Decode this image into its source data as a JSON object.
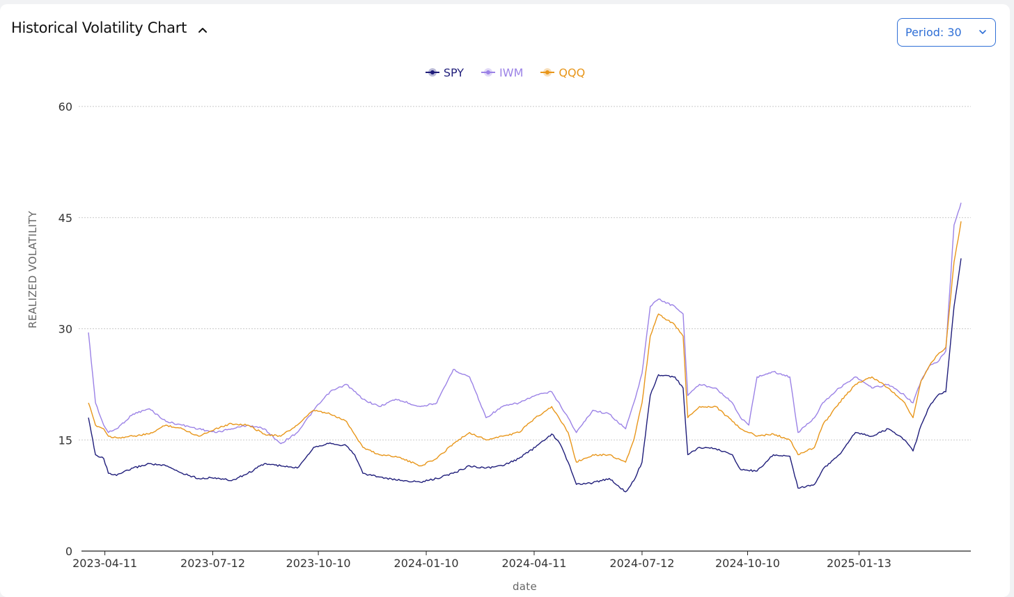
{
  "header": {
    "title": "Historical Volatility Chart",
    "collapse_icon": "chevron-up-icon",
    "period_label": "Period: 30",
    "period_icon": "chevron-down-icon"
  },
  "colors": {
    "SPY": "#1f1d7a",
    "IWM": "#9b82e6",
    "QQQ": "#e8961a",
    "accent": "#2f6fd6",
    "grid": "#c9c9c9"
  },
  "chart_data": {
    "type": "line",
    "title": "",
    "xlabel": "date",
    "ylabel": "REALIZED VOLATILITY",
    "ylim": [
      0,
      60
    ],
    "yticks": [
      0,
      15,
      30,
      45,
      60
    ],
    "xticks": [
      "2023-04-11",
      "2023-07-12",
      "2023-10-10",
      "2024-01-10",
      "2024-04-11",
      "2024-07-12",
      "2024-10-10",
      "2025-01-13"
    ],
    "xrange": [
      "2023-03-28",
      "2025-04-10"
    ],
    "grid": "horizontal dotted",
    "legend_position": "top-center",
    "series": [
      {
        "name": "SPY",
        "points": [
          [
            "2023-03-28",
            18
          ],
          [
            "2023-04-03",
            13
          ],
          [
            "2023-04-10",
            12.5
          ],
          [
            "2023-04-14",
            10.5
          ],
          [
            "2023-04-21",
            10.2
          ],
          [
            "2023-05-05",
            11.2
          ],
          [
            "2023-05-19",
            11.8
          ],
          [
            "2023-06-02",
            11.5
          ],
          [
            "2023-06-16",
            10.5
          ],
          [
            "2023-06-30",
            9.8
          ],
          [
            "2023-07-14",
            9.9
          ],
          [
            "2023-07-28",
            9.5
          ],
          [
            "2023-08-11",
            10.5
          ],
          [
            "2023-08-25",
            11.8
          ],
          [
            "2023-09-08",
            11.5
          ],
          [
            "2023-09-22",
            11.2
          ],
          [
            "2023-10-06",
            14
          ],
          [
            "2023-10-20",
            14.6
          ],
          [
            "2023-11-03",
            14.2
          ],
          [
            "2023-11-10",
            13
          ],
          [
            "2023-11-17",
            10.5
          ],
          [
            "2023-12-01",
            10
          ],
          [
            "2023-12-15",
            9.6
          ],
          [
            "2024-01-05",
            9.3
          ],
          [
            "2024-01-19",
            9.8
          ],
          [
            "2024-02-02",
            10.5
          ],
          [
            "2024-02-16",
            11.5
          ],
          [
            "2024-03-01",
            11.2
          ],
          [
            "2024-03-15",
            11.5
          ],
          [
            "2024-03-29",
            12.5
          ],
          [
            "2024-04-12",
            14
          ],
          [
            "2024-04-26",
            15.8
          ],
          [
            "2024-05-03",
            14.5
          ],
          [
            "2024-05-10",
            12
          ],
          [
            "2024-05-17",
            9
          ],
          [
            "2024-05-31",
            9.2
          ],
          [
            "2024-06-14",
            9.8
          ],
          [
            "2024-06-28",
            8
          ],
          [
            "2024-07-05",
            9.5
          ],
          [
            "2024-07-12",
            12
          ],
          [
            "2024-07-19",
            21
          ],
          [
            "2024-07-26",
            23.8
          ],
          [
            "2024-08-09",
            23.5
          ],
          [
            "2024-08-16",
            22
          ],
          [
            "2024-08-20",
            13
          ],
          [
            "2024-08-30",
            14
          ],
          [
            "2024-09-13",
            13.8
          ],
          [
            "2024-09-27",
            13
          ],
          [
            "2024-10-04",
            11
          ],
          [
            "2024-10-18",
            10.8
          ],
          [
            "2024-11-01",
            13
          ],
          [
            "2024-11-15",
            12.8
          ],
          [
            "2024-11-22",
            8.5
          ],
          [
            "2024-12-06",
            9
          ],
          [
            "2024-12-13",
            11
          ],
          [
            "2024-12-27",
            13
          ],
          [
            "2025-01-10",
            16
          ],
          [
            "2025-01-24",
            15.5
          ],
          [
            "2025-02-07",
            16.5
          ],
          [
            "2025-02-21",
            15
          ],
          [
            "2025-02-28",
            13.5
          ],
          [
            "2025-03-07",
            17
          ],
          [
            "2025-03-14",
            19.5
          ],
          [
            "2025-03-21",
            21
          ],
          [
            "2025-03-28",
            21.5
          ],
          [
            "2025-04-04",
            33
          ],
          [
            "2025-04-10",
            39.5
          ]
        ]
      },
      {
        "name": "IWM",
        "points": [
          [
            "2023-03-28",
            29.5
          ],
          [
            "2023-04-03",
            20
          ],
          [
            "2023-04-10",
            17
          ],
          [
            "2023-04-14",
            16
          ],
          [
            "2023-04-21",
            16.5
          ],
          [
            "2023-05-05",
            18.5
          ],
          [
            "2023-05-19",
            19.2
          ],
          [
            "2023-06-02",
            17.5
          ],
          [
            "2023-06-16",
            17
          ],
          [
            "2023-06-30",
            16.5
          ],
          [
            "2023-07-14",
            16
          ],
          [
            "2023-07-28",
            16.5
          ],
          [
            "2023-08-11",
            17
          ],
          [
            "2023-08-25",
            16.5
          ],
          [
            "2023-09-08",
            14.5
          ],
          [
            "2023-09-22",
            16
          ],
          [
            "2023-10-06",
            19
          ],
          [
            "2023-10-20",
            21.5
          ],
          [
            "2023-11-03",
            22.5
          ],
          [
            "2023-11-17",
            20.5
          ],
          [
            "2023-12-01",
            19.5
          ],
          [
            "2023-12-15",
            20.5
          ],
          [
            "2024-01-05",
            19.5
          ],
          [
            "2024-01-19",
            20
          ],
          [
            "2024-02-02",
            24.5
          ],
          [
            "2024-02-16",
            23.5
          ],
          [
            "2024-03-01",
            18
          ],
          [
            "2024-03-15",
            19.5
          ],
          [
            "2024-03-29",
            20
          ],
          [
            "2024-04-12",
            21
          ],
          [
            "2024-04-26",
            21.5
          ],
          [
            "2024-05-10",
            18
          ],
          [
            "2024-05-17",
            16
          ],
          [
            "2024-05-31",
            19
          ],
          [
            "2024-06-14",
            18.5
          ],
          [
            "2024-06-28",
            16.5
          ],
          [
            "2024-07-05",
            20
          ],
          [
            "2024-07-12",
            24
          ],
          [
            "2024-07-19",
            33
          ],
          [
            "2024-07-26",
            34
          ],
          [
            "2024-08-09",
            33
          ],
          [
            "2024-08-16",
            32
          ],
          [
            "2024-08-20",
            21
          ],
          [
            "2024-08-30",
            22.5
          ],
          [
            "2024-09-13",
            22
          ],
          [
            "2024-09-27",
            20
          ],
          [
            "2024-10-04",
            18
          ],
          [
            "2024-10-11",
            17
          ],
          [
            "2024-10-18",
            23.5
          ],
          [
            "2024-11-01",
            24.2
          ],
          [
            "2024-11-15",
            23.5
          ],
          [
            "2024-11-22",
            16
          ],
          [
            "2024-12-06",
            18
          ],
          [
            "2024-12-13",
            20
          ],
          [
            "2024-12-27",
            22
          ],
          [
            "2025-01-10",
            23.5
          ],
          [
            "2025-01-24",
            22
          ],
          [
            "2025-02-07",
            22.5
          ],
          [
            "2025-02-21",
            21
          ],
          [
            "2025-02-28",
            20
          ],
          [
            "2025-03-07",
            23
          ],
          [
            "2025-03-14",
            25
          ],
          [
            "2025-03-21",
            25.5
          ],
          [
            "2025-03-28",
            27
          ],
          [
            "2025-04-04",
            44
          ],
          [
            "2025-04-10",
            47
          ]
        ]
      },
      {
        "name": "QQQ",
        "points": [
          [
            "2023-03-28",
            20
          ],
          [
            "2023-04-03",
            17
          ],
          [
            "2023-04-10",
            16.5
          ],
          [
            "2023-04-14",
            15.5
          ],
          [
            "2023-04-21",
            15.3
          ],
          [
            "2023-05-05",
            15.5
          ],
          [
            "2023-05-19",
            15.8
          ],
          [
            "2023-06-02",
            17
          ],
          [
            "2023-06-16",
            16.5
          ],
          [
            "2023-06-30",
            15.5
          ],
          [
            "2023-07-14",
            16.5
          ],
          [
            "2023-07-28",
            17.2
          ],
          [
            "2023-08-11",
            17
          ],
          [
            "2023-08-25",
            15.8
          ],
          [
            "2023-09-08",
            15.5
          ],
          [
            "2023-09-22",
            17
          ],
          [
            "2023-10-06",
            19
          ],
          [
            "2023-10-20",
            18.5
          ],
          [
            "2023-11-03",
            17.5
          ],
          [
            "2023-11-17",
            14
          ],
          [
            "2023-12-01",
            13
          ],
          [
            "2023-12-15",
            12.8
          ],
          [
            "2024-01-05",
            11.5
          ],
          [
            "2024-01-19",
            12.5
          ],
          [
            "2024-02-02",
            14.5
          ],
          [
            "2024-02-16",
            16
          ],
          [
            "2024-03-01",
            15
          ],
          [
            "2024-03-15",
            15.5
          ],
          [
            "2024-03-29",
            16
          ],
          [
            "2024-04-12",
            18
          ],
          [
            "2024-04-26",
            19.5
          ],
          [
            "2024-05-10",
            16
          ],
          [
            "2024-05-17",
            12
          ],
          [
            "2024-05-31",
            13
          ],
          [
            "2024-06-14",
            13
          ],
          [
            "2024-06-28",
            12
          ],
          [
            "2024-07-05",
            15
          ],
          [
            "2024-07-12",
            20
          ],
          [
            "2024-07-19",
            29
          ],
          [
            "2024-07-26",
            32
          ],
          [
            "2024-08-09",
            30.5
          ],
          [
            "2024-08-16",
            29
          ],
          [
            "2024-08-20",
            18
          ],
          [
            "2024-08-30",
            19.5
          ],
          [
            "2024-09-13",
            19.5
          ],
          [
            "2024-09-27",
            17.5
          ],
          [
            "2024-10-04",
            16.5
          ],
          [
            "2024-10-18",
            15.5
          ],
          [
            "2024-11-01",
            15.8
          ],
          [
            "2024-11-15",
            15
          ],
          [
            "2024-11-22",
            13
          ],
          [
            "2024-12-06",
            14
          ],
          [
            "2024-12-13",
            17
          ],
          [
            "2024-12-27",
            20
          ],
          [
            "2025-01-10",
            22.5
          ],
          [
            "2025-01-24",
            23.5
          ],
          [
            "2025-02-07",
            22
          ],
          [
            "2025-02-21",
            20
          ],
          [
            "2025-02-28",
            18
          ],
          [
            "2025-03-07",
            23
          ],
          [
            "2025-03-14",
            25
          ],
          [
            "2025-03-21",
            26.5
          ],
          [
            "2025-03-28",
            27.5
          ],
          [
            "2025-04-04",
            39
          ],
          [
            "2025-04-10",
            44.5
          ]
        ]
      }
    ]
  }
}
